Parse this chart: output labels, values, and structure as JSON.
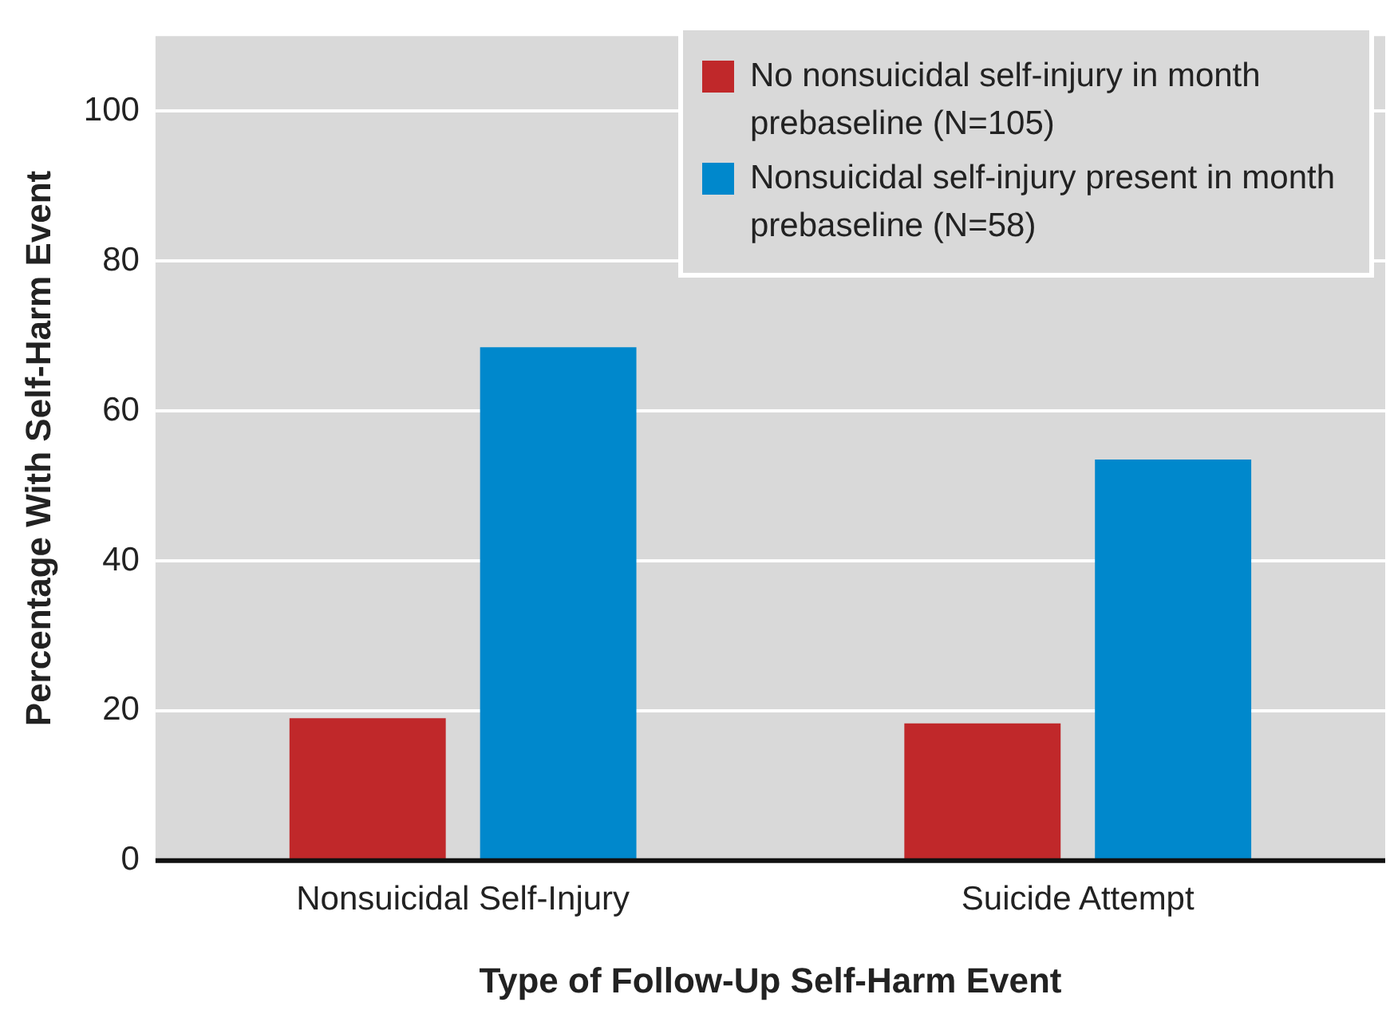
{
  "chart_data": {
    "type": "bar",
    "xlabel": "Type of Follow-Up Self-Harm Event",
    "ylabel": "Percentage With Self-Harm Event",
    "categories": [
      "Nonsuicidal Self-Injury",
      "Suicide Attempt"
    ],
    "series": [
      {
        "name": "No nonsuicidal self-injury in month prebaseline (N=105)",
        "color": "#c0282a",
        "values": [
          19,
          18.3
        ]
      },
      {
        "name": "Nonsuicidal self-injury present in month prebaseline (N=58)",
        "color": "#0088cc",
        "values": [
          68.5,
          53.5
        ]
      }
    ],
    "ylim": [
      0,
      110
    ],
    "yticks": [
      0,
      20,
      40,
      60,
      80,
      100
    ],
    "grid": "y",
    "legend": "top right"
  }
}
